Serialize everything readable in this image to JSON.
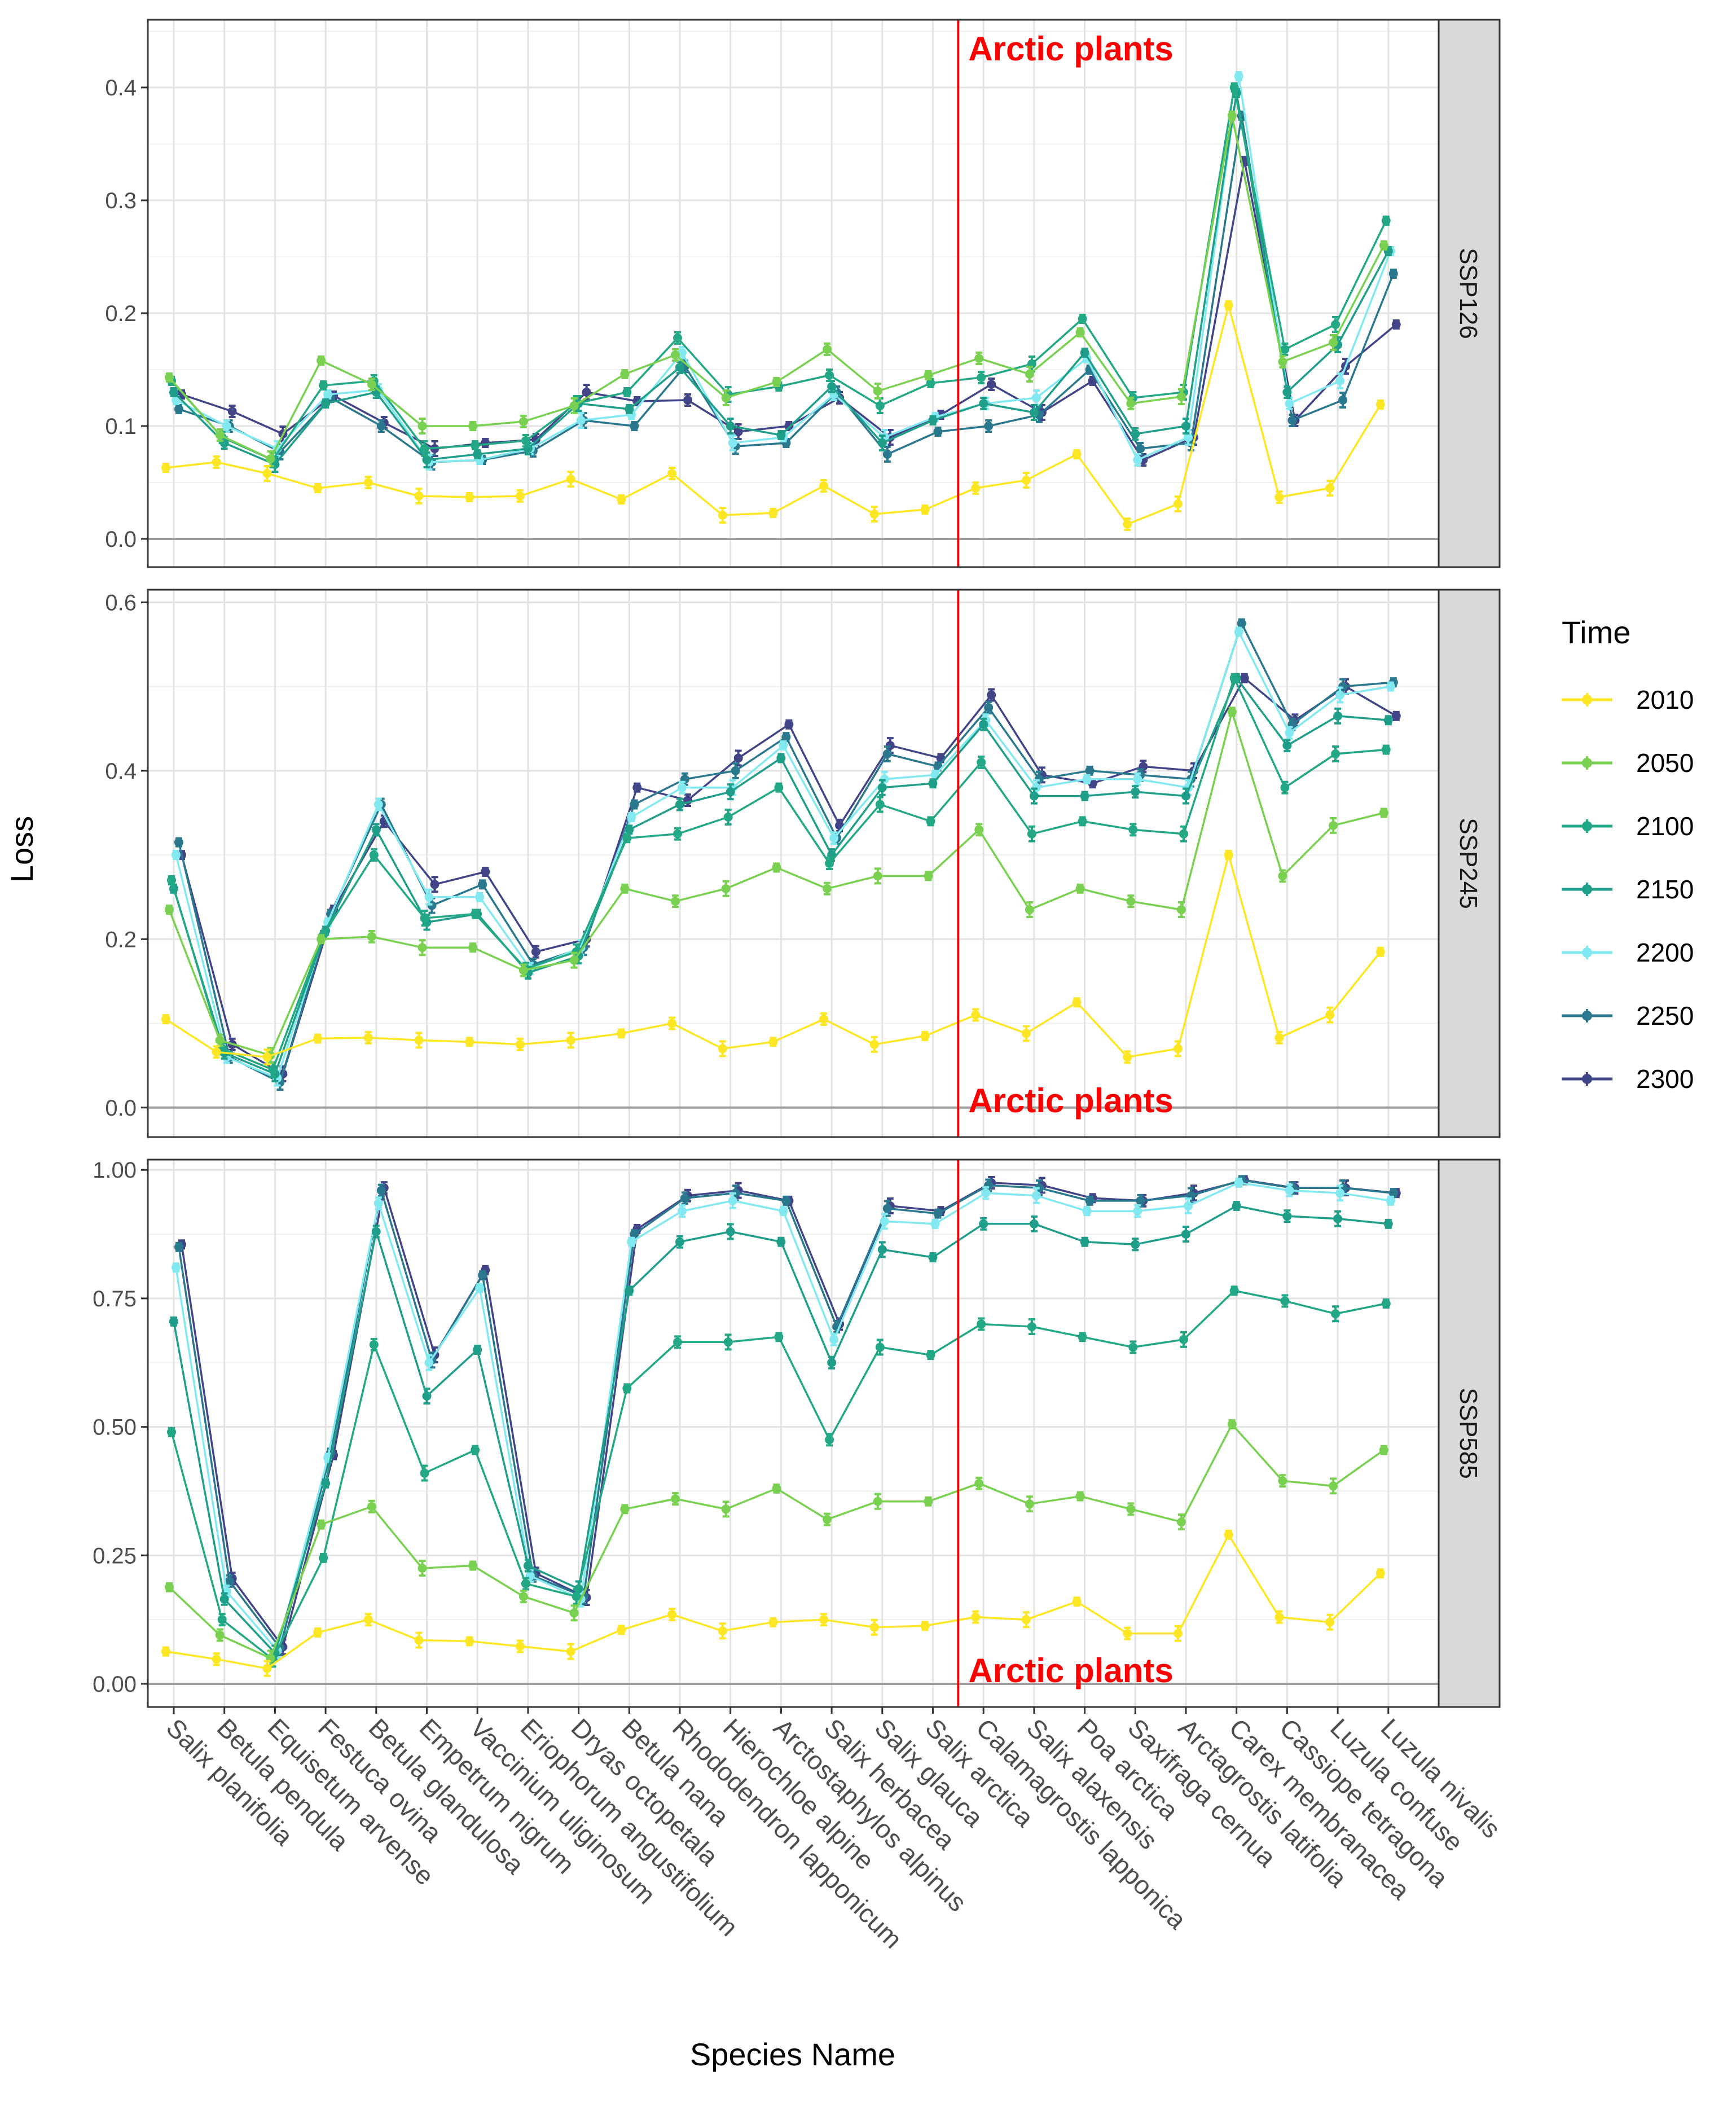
{
  "chart_data": {
    "type": "line",
    "xlabel": "Species Name",
    "ylabel": "Loss",
    "categories": [
      "Salix planifolia",
      "Betula pendula",
      "Equisetum arvense",
      "Festuca ovina",
      "Betula glandulosa",
      "Empetrum nigrum",
      "Vaccinium uliginosum",
      "Eriophorum angustifolium",
      "Dryas octopetala",
      "Betula nana",
      "Rhododendron lapponicum",
      "Hierochloe alpine",
      "Arctostaphylos alpinus",
      "Salix herbacea",
      "Salix glauca",
      "Salix arctica",
      "Calamagrostis lapponica",
      "Salix alaxensis",
      "Poa arctica",
      "Saxifraga cernua",
      "Arctagrostis latifolia",
      "Carex membranacea",
      "Cassiope tetragona",
      "Luzula confuse",
      "Luzula nivalis"
    ],
    "annotation": {
      "text": "Arctic plants",
      "after_category_index": 15,
      "color": "#ff0000"
    },
    "legend": {
      "title": "Time",
      "entries": [
        {
          "label": "2010",
          "color": "#fde725"
        },
        {
          "label": "2050",
          "color": "#7ad151"
        },
        {
          "label": "2100",
          "color": "#22a884"
        },
        {
          "label": "2150",
          "color": "#1f9e89"
        },
        {
          "label": "2200",
          "color": "#83e9f0"
        },
        {
          "label": "2250",
          "color": "#2a788e"
        },
        {
          "label": "2300",
          "color": "#414487"
        }
      ]
    },
    "panels": [
      {
        "name": "SSP126",
        "ylim": [
          -0.025,
          0.46
        ],
        "yticks": [
          0.0,
          0.1,
          0.2,
          0.3,
          0.4
        ],
        "ytick_labels": [
          "0.0",
          "0.1",
          "0.2",
          "0.3",
          "0.4"
        ],
        "annotation_position": "top",
        "series": [
          {
            "name": "2010",
            "values": [
              0.063,
              0.068,
              0.058,
              0.045,
              0.05,
              0.038,
              0.037,
              0.038,
              0.053,
              0.035,
              0.058,
              0.021,
              0.023,
              0.047,
              0.022,
              0.026,
              0.045,
              0.052,
              0.075,
              0.013,
              0.031,
              0.207,
              0.037,
              0.045,
              0.119
            ]
          },
          {
            "name": "2050",
            "values": [
              0.143,
              0.092,
              0.071,
              0.158,
              0.137,
              0.1,
              0.1,
              0.104,
              0.118,
              0.146,
              0.163,
              0.125,
              0.139,
              0.168,
              0.131,
              0.145,
              0.16,
              0.146,
              0.183,
              0.12,
              0.126,
              0.375,
              0.157,
              0.174,
              0.26
            ]
          },
          {
            "name": "2100",
            "values": [
              0.14,
              0.09,
              0.07,
              0.136,
              0.14,
              0.08,
              0.083,
              0.087,
              0.12,
              0.13,
              0.178,
              0.128,
              0.135,
              0.145,
              0.118,
              0.138,
              0.143,
              0.155,
              0.195,
              0.125,
              0.13,
              0.4,
              0.168,
              0.19,
              0.282
            ]
          },
          {
            "name": "2150",
            "values": [
              0.13,
              0.085,
              0.066,
              0.12,
              0.13,
              0.07,
              0.075,
              0.08,
              0.12,
              0.115,
              0.152,
              0.1,
              0.092,
              0.135,
              0.085,
              0.105,
              0.12,
              0.112,
              0.165,
              0.093,
              0.1,
              0.395,
              0.13,
              0.172,
              0.255
            ]
          },
          {
            "name": "2200",
            "values": [
              0.123,
              0.1,
              0.08,
              0.128,
              0.132,
              0.068,
              0.07,
              0.08,
              0.105,
              0.11,
              0.165,
              0.085,
              0.09,
              0.128,
              0.09,
              0.108,
              0.12,
              0.125,
              0.16,
              0.07,
              0.09,
              0.41,
              0.12,
              0.14,
              0.255
            ]
          },
          {
            "name": "2250",
            "values": [
              0.115,
              0.1,
              0.077,
              0.125,
              0.1,
              0.068,
              0.07,
              0.078,
              0.105,
              0.1,
              0.153,
              0.082,
              0.085,
              0.13,
              0.075,
              0.095,
              0.1,
              0.11,
              0.15,
              0.08,
              0.085,
              0.375,
              0.105,
              0.123,
              0.235
            ]
          },
          {
            "name": "2300",
            "values": [
              0.128,
              0.113,
              0.093,
              0.127,
              0.103,
              0.08,
              0.085,
              0.088,
              0.13,
              0.122,
              0.123,
              0.095,
              0.1,
              0.125,
              0.09,
              0.11,
              0.137,
              0.112,
              0.14,
              0.07,
              0.09,
              0.335,
              0.105,
              0.153,
              0.19
            ]
          }
        ]
      },
      {
        "name": "SSP245",
        "ylim": [
          -0.035,
          0.615
        ],
        "yticks": [
          0.0,
          0.2,
          0.4,
          0.6
        ],
        "ytick_labels": [
          "0.0",
          "0.2",
          "0.4",
          "0.6"
        ],
        "annotation_position": "bottom",
        "series": [
          {
            "name": "2010",
            "values": [
              0.105,
              0.066,
              0.06,
              0.082,
              0.083,
              0.08,
              0.078,
              0.075,
              0.08,
              0.088,
              0.1,
              0.07,
              0.078,
              0.105,
              0.075,
              0.085,
              0.11,
              0.088,
              0.125,
              0.06,
              0.07,
              0.3,
              0.083,
              0.11,
              0.185
            ]
          },
          {
            "name": "2050",
            "values": [
              0.235,
              0.08,
              0.062,
              0.2,
              0.203,
              0.19,
              0.19,
              0.163,
              0.175,
              0.26,
              0.245,
              0.26,
              0.285,
              0.26,
              0.275,
              0.275,
              0.33,
              0.235,
              0.26,
              0.245,
              0.235,
              0.47,
              0.275,
              0.335,
              0.35
            ]
          },
          {
            "name": "2100",
            "values": [
              0.27,
              0.07,
              0.045,
              0.205,
              0.3,
              0.225,
              0.23,
              0.165,
              0.185,
              0.32,
              0.325,
              0.345,
              0.38,
              0.29,
              0.36,
              0.34,
              0.41,
              0.325,
              0.34,
              0.33,
              0.325,
              0.51,
              0.38,
              0.42,
              0.425
            ]
          },
          {
            "name": "2150",
            "values": [
              0.26,
              0.065,
              0.04,
              0.21,
              0.33,
              0.22,
              0.23,
              0.16,
              0.18,
              0.33,
              0.36,
              0.375,
              0.415,
              0.3,
              0.38,
              0.385,
              0.455,
              0.37,
              0.37,
              0.375,
              0.37,
              0.51,
              0.43,
              0.465,
              0.46
            ]
          },
          {
            "name": "2200",
            "values": [
              0.3,
              0.06,
              0.035,
              0.22,
              0.36,
              0.25,
              0.25,
              0.165,
              0.19,
              0.345,
              0.38,
              0.38,
              0.43,
              0.32,
              0.39,
              0.395,
              0.46,
              0.38,
              0.39,
              0.39,
              0.38,
              0.565,
              0.445,
              0.49,
              0.5
            ]
          },
          {
            "name": "2250",
            "values": [
              0.315,
              0.06,
              0.03,
              0.23,
              0.36,
              0.24,
              0.265,
              0.17,
              0.19,
              0.36,
              0.39,
              0.4,
              0.44,
              0.32,
              0.42,
              0.405,
              0.475,
              0.39,
              0.4,
              0.395,
              0.39,
              0.575,
              0.455,
              0.5,
              0.505
            ]
          },
          {
            "name": "2300",
            "values": [
              0.3,
              0.075,
              0.04,
              0.235,
              0.34,
              0.265,
              0.28,
              0.185,
              0.2,
              0.38,
              0.365,
              0.415,
              0.455,
              0.335,
              0.43,
              0.415,
              0.49,
              0.395,
              0.385,
              0.405,
              0.4,
              0.51,
              0.46,
              0.5,
              0.465
            ]
          }
        ]
      },
      {
        "name": "SSP585",
        "ylim": [
          -0.045,
          1.02
        ],
        "yticks": [
          0.0,
          0.25,
          0.5,
          0.75,
          1.0
        ],
        "ytick_labels": [
          "0.00",
          "0.25",
          "0.50",
          "0.75",
          "1.00"
        ],
        "annotation_position": "bottom",
        "series": [
          {
            "name": "2010",
            "values": [
              0.063,
              0.048,
              0.03,
              0.1,
              0.125,
              0.085,
              0.083,
              0.073,
              0.063,
              0.105,
              0.135,
              0.103,
              0.12,
              0.125,
              0.11,
              0.113,
              0.13,
              0.125,
              0.16,
              0.098,
              0.098,
              0.29,
              0.13,
              0.12,
              0.215
            ]
          },
          {
            "name": "2050",
            "values": [
              0.188,
              0.095,
              0.05,
              0.31,
              0.345,
              0.225,
              0.23,
              0.17,
              0.138,
              0.34,
              0.36,
              0.34,
              0.38,
              0.32,
              0.355,
              0.355,
              0.39,
              0.35,
              0.365,
              0.34,
              0.315,
              0.505,
              0.395,
              0.385,
              0.455
            ]
          },
          {
            "name": "2100",
            "values": [
              0.49,
              0.125,
              0.048,
              0.245,
              0.66,
              0.41,
              0.455,
              0.195,
              0.17,
              0.575,
              0.665,
              0.665,
              0.675,
              0.475,
              0.655,
              0.64,
              0.7,
              0.695,
              0.675,
              0.655,
              0.67,
              0.765,
              0.745,
              0.72,
              0.74
            ]
          },
          {
            "name": "2150",
            "values": [
              0.705,
              0.165,
              0.06,
              0.39,
              0.88,
              0.56,
              0.65,
              0.23,
              0.185,
              0.765,
              0.86,
              0.88,
              0.86,
              0.625,
              0.845,
              0.83,
              0.895,
              0.895,
              0.86,
              0.855,
              0.875,
              0.93,
              0.91,
              0.905,
              0.895
            ]
          },
          {
            "name": "2200",
            "values": [
              0.81,
              0.18,
              0.065,
              0.44,
              0.935,
              0.625,
              0.77,
              0.21,
              0.165,
              0.86,
              0.92,
              0.94,
              0.92,
              0.67,
              0.9,
              0.895,
              0.955,
              0.95,
              0.92,
              0.92,
              0.93,
              0.975,
              0.96,
              0.955,
              0.94
            ]
          },
          {
            "name": "2250",
            "values": [
              0.85,
              0.2,
              0.07,
              0.45,
              0.96,
              0.63,
              0.795,
              0.21,
              0.17,
              0.875,
              0.945,
              0.955,
              0.94,
              0.695,
              0.925,
              0.915,
              0.97,
              0.965,
              0.94,
              0.94,
              0.95,
              0.98,
              0.965,
              0.965,
              0.955
            ]
          },
          {
            "name": "2300",
            "values": [
              0.855,
              0.205,
              0.072,
              0.445,
              0.965,
              0.64,
              0.805,
              0.215,
              0.168,
              0.885,
              0.95,
              0.96,
              0.94,
              0.7,
              0.93,
              0.92,
              0.975,
              0.97,
              0.945,
              0.94,
              0.955,
              0.98,
              0.965,
              0.965,
              0.955
            ]
          }
        ]
      }
    ]
  }
}
